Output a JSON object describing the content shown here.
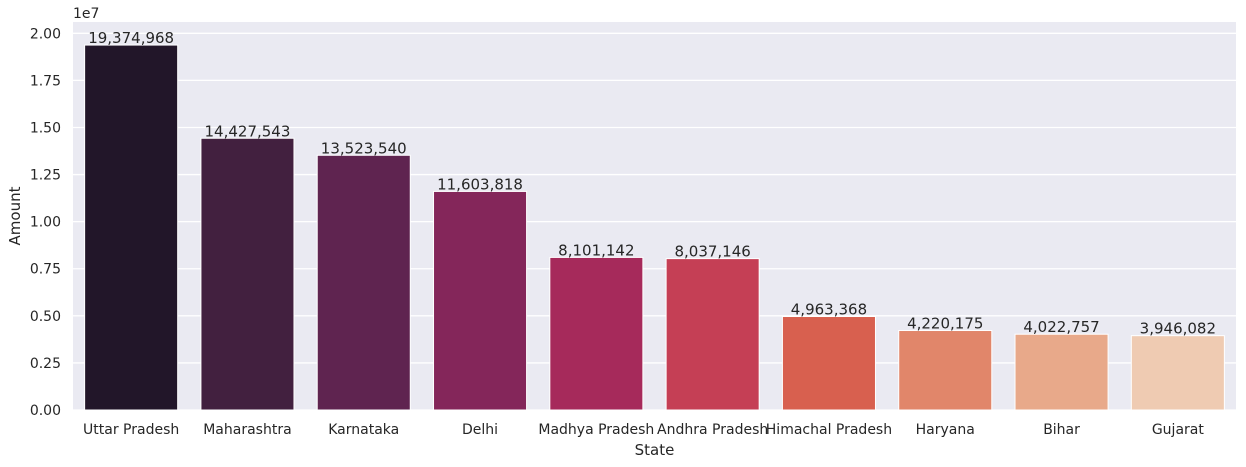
{
  "chart_data": {
    "type": "bar",
    "title": "",
    "xlabel": "State",
    "ylabel": "Amount",
    "offset_label": "1e7",
    "scale": 10000000,
    "ylim": [
      0,
      2.06
    ],
    "yticks": [
      0.0,
      0.25,
      0.5,
      0.75,
      1.0,
      1.25,
      1.5,
      1.75,
      2.0
    ],
    "ytick_labels": [
      "0.00",
      "0.25",
      "0.50",
      "0.75",
      "1.00",
      "1.25",
      "1.50",
      "1.75",
      "2.00"
    ],
    "grid": true,
    "categories": [
      "Uttar Pradesh",
      "Maharashtra",
      "Karnataka",
      "Delhi",
      "Madhya Pradesh",
      "Andhra Pradesh",
      "Himachal Pradesh",
      "Haryana",
      "Bihar",
      "Gujarat"
    ],
    "values": [
      19374968,
      14427543,
      13523540,
      11603818,
      8101142,
      8037146,
      4963368,
      4220175,
      4022757,
      3946082
    ],
    "value_labels": [
      "19,374,968",
      "14,427,543",
      "13,523,540",
      "11,603,818",
      "8,101,142",
      "8,037,146",
      "4,963,368",
      "4,220,175",
      "4,022,757",
      "3,946,082"
    ],
    "colors": [
      "#221629",
      "#42203f",
      "#5f2450",
      "#84265a",
      "#a62a5b",
      "#c53f55",
      "#d8604f",
      "#e1866a",
      "#e8a98a",
      "#efcbb2"
    ],
    "background": "#eaeaf2",
    "gridline_color": "#ffffff"
  }
}
